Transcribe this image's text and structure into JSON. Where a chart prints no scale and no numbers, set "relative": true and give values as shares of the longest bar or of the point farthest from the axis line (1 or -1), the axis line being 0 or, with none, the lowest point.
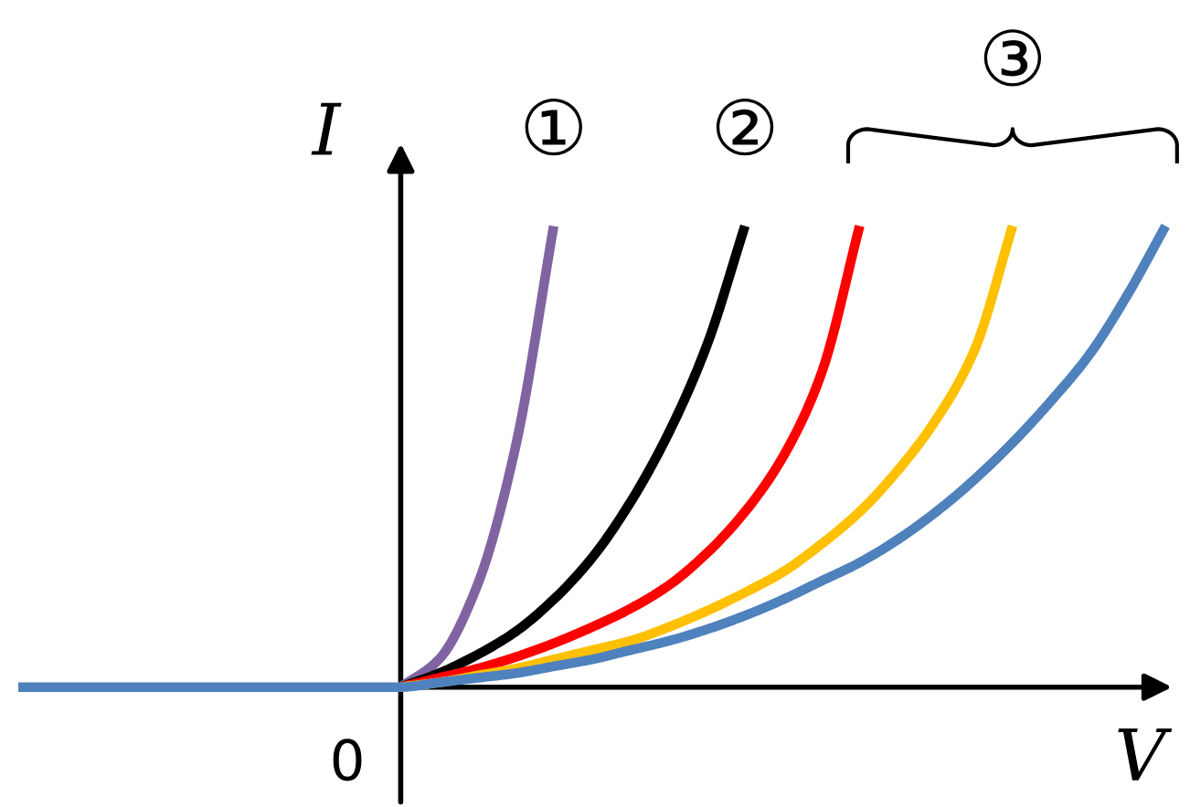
{
  "chart_data": {
    "type": "line",
    "relative": true,
    "xlabel": "V",
    "ylabel": "I",
    "marker": "none",
    "line_style": "solid",
    "categories": [
      null,
      null,
      null,
      null,
      null,
      null,
      null,
      null,
      null,
      null,
      null,
      null,
      null,
      null,
      null,
      null,
      null,
      null,
      null,
      null,
      null,
      null,
      null,
      null,
      null,
      null,
      null,
      null,
      null,
      null,
      null
    ],
    "series": [
      {
        "color": "#4f81bd",
        "values": [
          0,
          0,
          0,
          0,
          0,
          0,
          0,
          0,
          0,
          0,
          0,
          0.01,
          0.02,
          0.03,
          0.045,
          0.06,
          0.08,
          0.1,
          0.125,
          0.155,
          0.19,
          0.23,
          0.27,
          0.32,
          0.38,
          0.45,
          0.53,
          0.62,
          0.72,
          0.85,
          1
        ]
      },
      {
        "color": "#ffc000",
        "values": [
          null,
          null,
          null,
          null,
          null,
          null,
          null,
          null,
          null,
          null,
          0,
          0.01,
          0.025,
          0.04,
          0.06,
          0.08,
          0.1,
          0.13,
          0.165,
          0.205,
          0.25,
          0.31,
          0.38,
          0.47,
          0.58,
          0.73,
          1,
          null,
          null,
          null,
          null
        ]
      },
      {
        "color": "#ff0000",
        "values": [
          null,
          null,
          null,
          null,
          null,
          null,
          null,
          null,
          null,
          null,
          0,
          0.02,
          0.04,
          0.065,
          0.095,
          0.13,
          0.17,
          0.22,
          0.29,
          0.38,
          0.5,
          0.68,
          1,
          null,
          null,
          null,
          null,
          null,
          null,
          null,
          null
        ]
      },
      {
        "color": "#000000",
        "values": [
          null,
          null,
          null,
          null,
          null,
          null,
          null,
          null,
          null,
          null,
          0,
          0.03,
          0.07,
          0.12,
          0.19,
          0.28,
          0.4,
          0.55,
          0.74,
          1,
          null,
          null,
          null,
          null,
          null,
          null,
          null,
          null,
          null,
          null,
          null
        ]
      },
      {
        "color": "#8064a2",
        "values": [
          null,
          null,
          null,
          null,
          null,
          null,
          null,
          null,
          null,
          null,
          0,
          0.06,
          0.22,
          0.52,
          1,
          null,
          null,
          null,
          null,
          null,
          null,
          null,
          null,
          null,
          null,
          null,
          null,
          null,
          null,
          null,
          null
        ]
      }
    ],
    "annotations": [
      "0",
      "①",
      "②",
      "③"
    ]
  }
}
